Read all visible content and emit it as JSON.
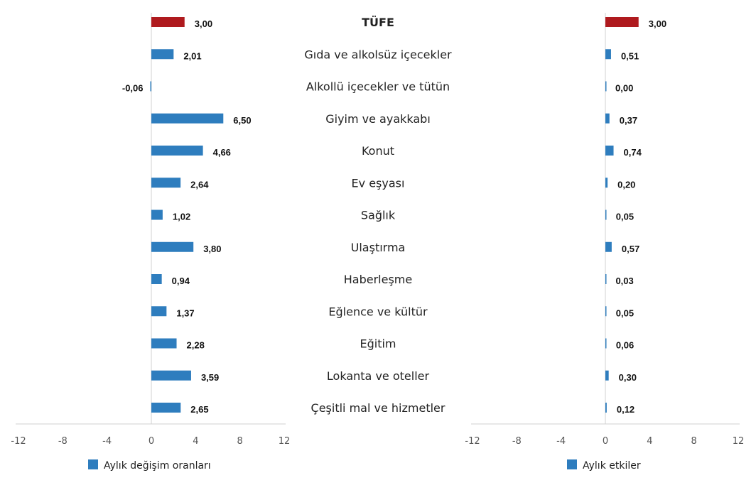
{
  "colors": {
    "bar": "#2E7DBE",
    "highlight": "#AF1A1E",
    "axis": "#D0D0D0"
  },
  "categories": [
    {
      "label": "TÜFE",
      "bold": true,
      "highlight": true
    },
    {
      "label": "Gıda ve alkolsüz içecekler"
    },
    {
      "label": "Alkollü içecekler ve tütün"
    },
    {
      "label": "Giyim ve ayakkabı"
    },
    {
      "label": "Konut"
    },
    {
      "label": "Ev eşyası"
    },
    {
      "label": "Sağlık"
    },
    {
      "label": "Ulaştırma"
    },
    {
      "label": "Haberleşme"
    },
    {
      "label": "Eğlence ve kültür"
    },
    {
      "label": "Eğitim"
    },
    {
      "label": "Lokanta ve oteller"
    },
    {
      "label": "Çeşitli mal ve hizmetler"
    }
  ],
  "chart_data": [
    {
      "type": "bar",
      "orientation": "horizontal",
      "legend": "Aylık değişim oranları",
      "legend_position": "bottom",
      "xlim": [
        -12,
        12
      ],
      "xticks": [
        -12,
        -8,
        -4,
        0,
        4,
        8,
        12
      ],
      "grid": false,
      "values": [
        3.0,
        2.01,
        -0.06,
        6.5,
        4.66,
        2.64,
        1.02,
        3.8,
        0.94,
        1.37,
        2.28,
        3.59,
        2.65
      ],
      "value_labels": [
        "3,00",
        "2,01",
        "-0,06",
        "6,50",
        "4,66",
        "2,64",
        "1,02",
        "3,80",
        "0,94",
        "1,37",
        "2,28",
        "3,59",
        "2,65"
      ]
    },
    {
      "type": "bar",
      "orientation": "horizontal",
      "legend": "Aylık etkiler",
      "legend_position": "bottom",
      "xlim": [
        -12,
        12
      ],
      "xticks": [
        -12,
        -8,
        -4,
        0,
        4,
        8,
        12
      ],
      "grid": false,
      "values": [
        3.0,
        0.51,
        0.0,
        0.37,
        0.74,
        0.2,
        0.05,
        0.57,
        0.03,
        0.05,
        0.06,
        0.3,
        0.12
      ],
      "value_labels": [
        "3,00",
        "0,51",
        "0,00",
        "0,37",
        "0,74",
        "0,20",
        "0,05",
        "0,57",
        "0,03",
        "0,05",
        "0,06",
        "0,30",
        "0,12"
      ]
    }
  ]
}
